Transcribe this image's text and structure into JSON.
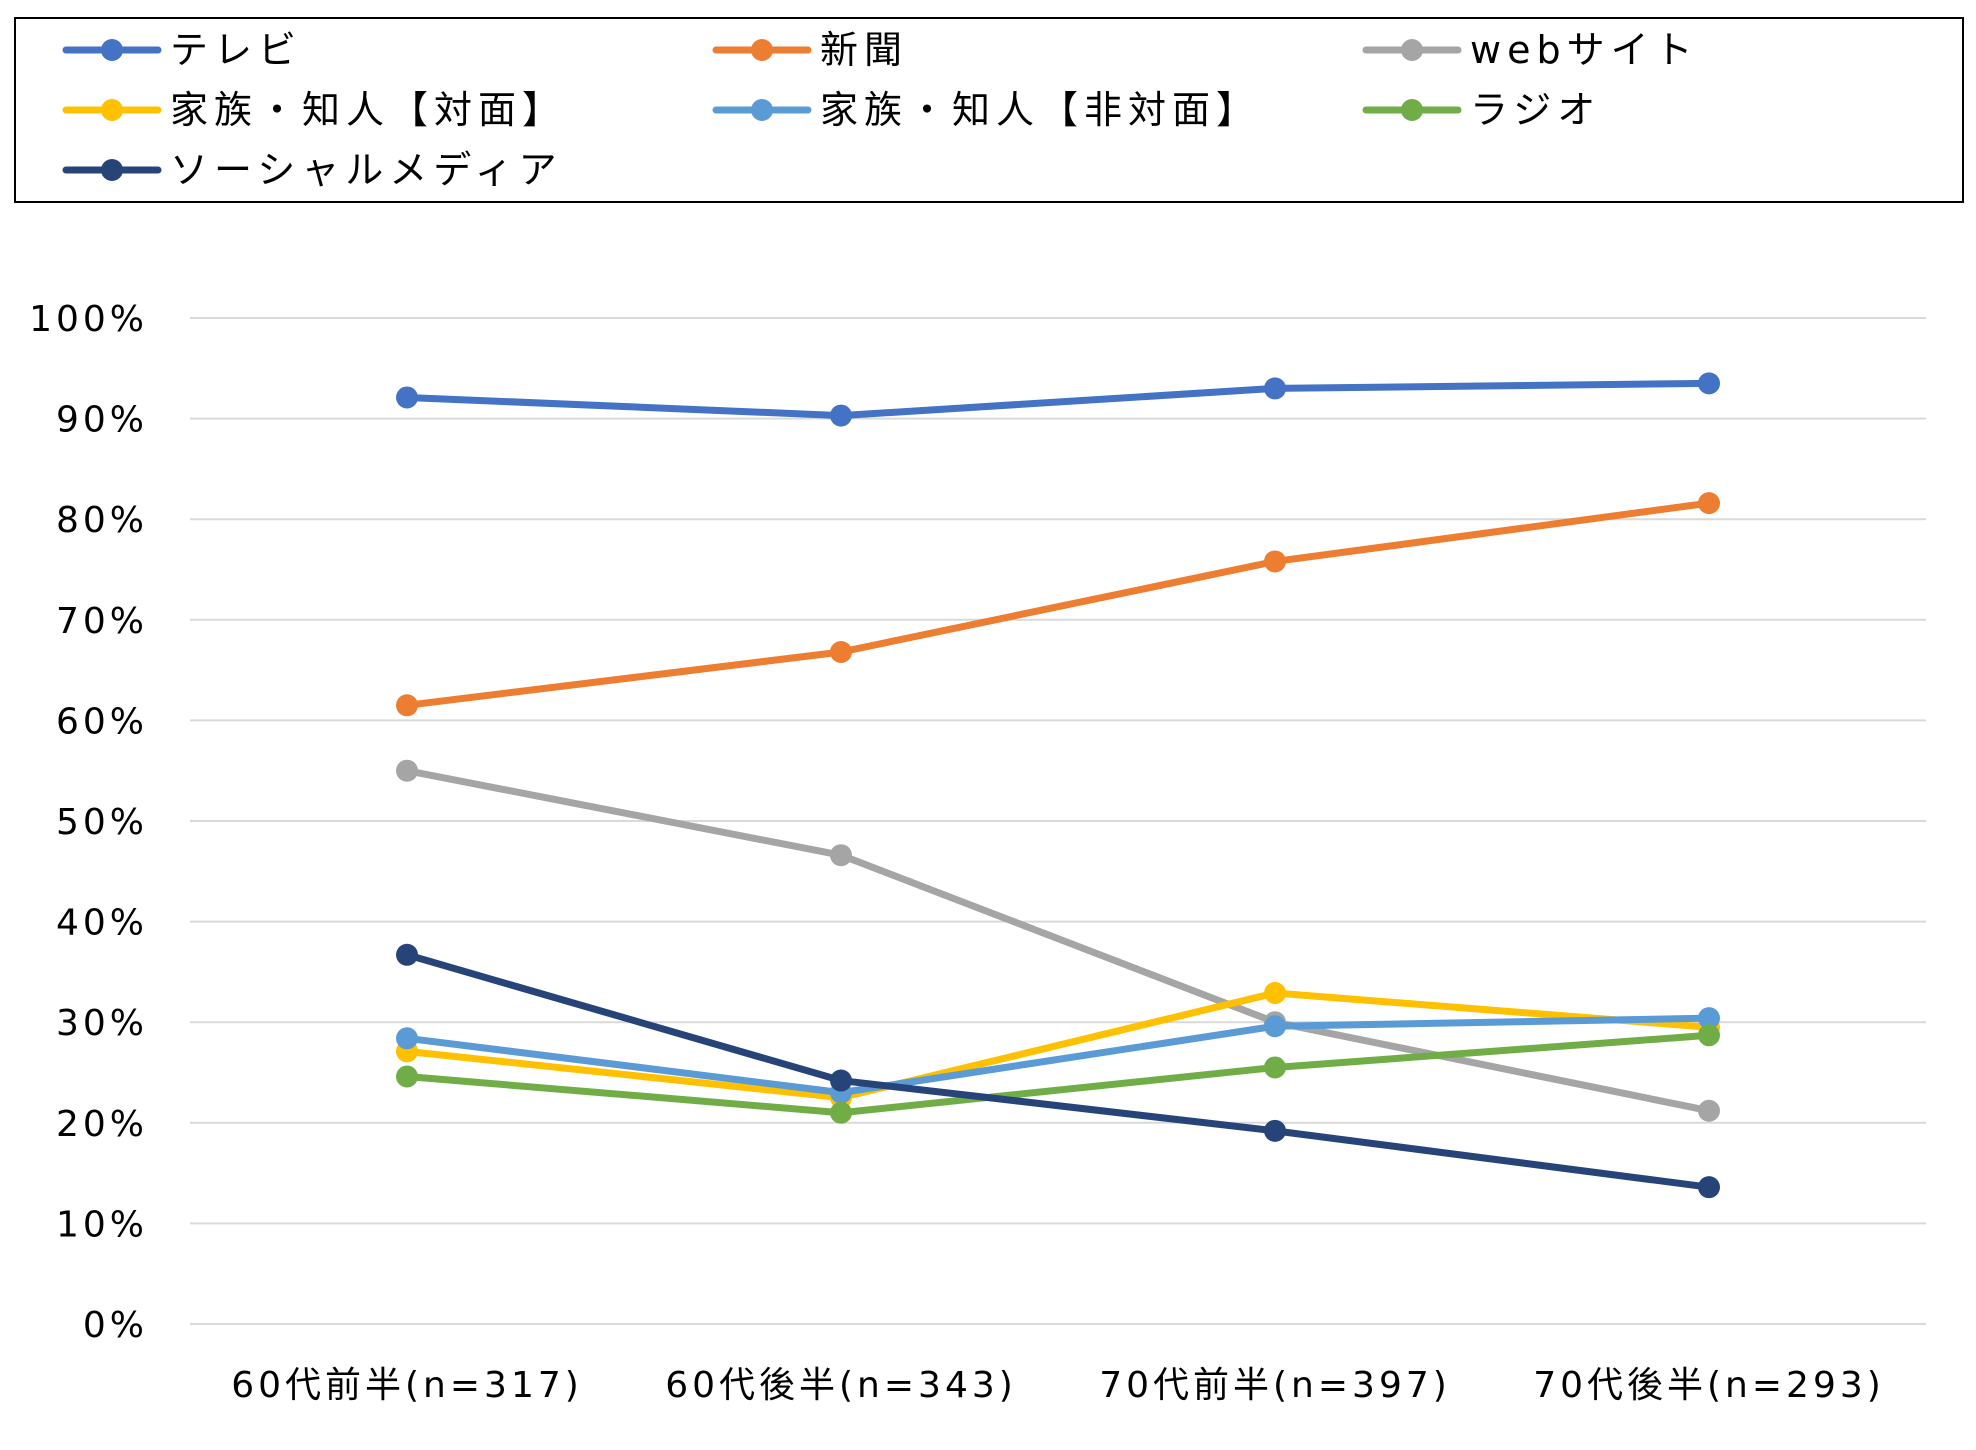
{
  "chart_data": {
    "type": "line",
    "categories": [
      "60代前半(n=317)",
      "60代後半(n=343)",
      "70代前半(n=397)",
      "70代後半(n=293)"
    ],
    "y_ticks": [
      "0%",
      "10%",
      "20%",
      "30%",
      "40%",
      "50%",
      "60%",
      "70%",
      "80%",
      "90%",
      "100%"
    ],
    "ylim": [
      0,
      100
    ],
    "grid": true,
    "legend_position": "top",
    "series": [
      {
        "name": "テレビ",
        "color": "#4472C4",
        "values": [
          92.1,
          90.3,
          93.0,
          93.5
        ]
      },
      {
        "name": "新聞",
        "color": "#ED7D31",
        "values": [
          61.5,
          66.8,
          75.8,
          81.6
        ]
      },
      {
        "name": "webサイト",
        "color": "#A5A5A5",
        "values": [
          55.0,
          46.6,
          30.0,
          21.2
        ]
      },
      {
        "name": "家族・知人【対面】",
        "color": "#FFC000",
        "values": [
          27.1,
          22.5,
          32.9,
          29.5
        ]
      },
      {
        "name": "家族・知人【非対面】",
        "color": "#5B9BD5",
        "values": [
          28.4,
          23.0,
          29.6,
          30.4
        ]
      },
      {
        "name": "ラジオ",
        "color": "#70AD47",
        "values": [
          24.6,
          21.0,
          25.5,
          28.7
        ]
      },
      {
        "name": "ソーシャルメディア",
        "color": "#264478",
        "values": [
          36.7,
          24.2,
          19.2,
          13.6
        ]
      }
    ]
  }
}
